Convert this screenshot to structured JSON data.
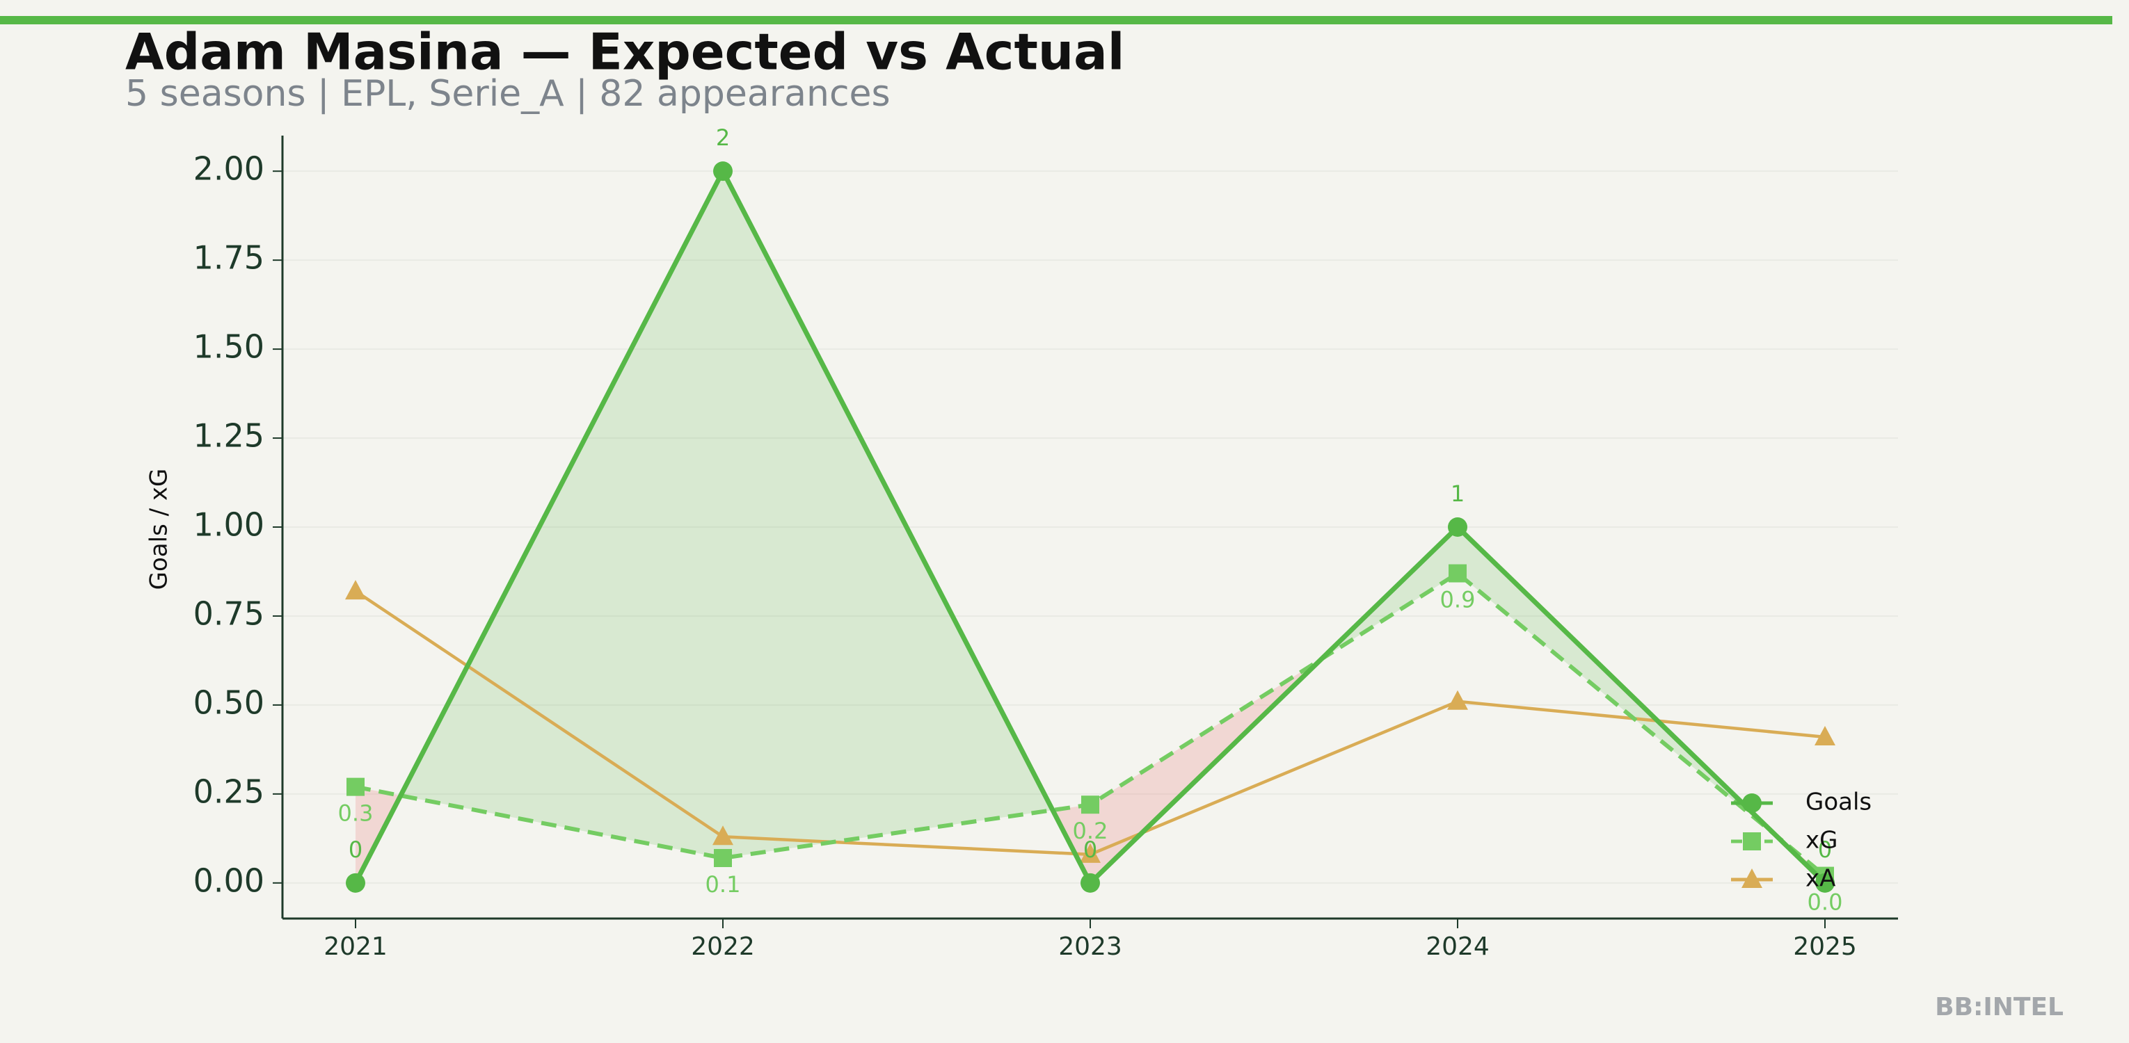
{
  "chart_data": {
    "type": "line",
    "title": "Adam Masina — Expected vs Actual",
    "subtitle": "5 seasons | EPL, Serie_A | 82 appearances",
    "y_label": "Goals / xG",
    "watermark": "BB:INTEL",
    "categories": [
      "2021",
      "2022",
      "2023",
      "2024",
      "2025"
    ],
    "series": [
      {
        "name": "Goals",
        "color": "#56b847",
        "line_style": "solid",
        "marker": "circle",
        "data_labels": true,
        "values": [
          0,
          2,
          0,
          1,
          0
        ]
      },
      {
        "name": "xG",
        "color": "#74cc62",
        "line_style": "dashed",
        "marker": "square",
        "data_labels": true,
        "values": [
          0.27,
          0.07,
          0.22,
          0.87,
          0.02
        ],
        "value_labels": [
          "0.3",
          "0.1",
          "0.2",
          "0.9",
          "0.0"
        ]
      },
      {
        "name": "xA",
        "color": "#d9ac55",
        "line_style": "solid",
        "marker": "triangle",
        "data_labels": false,
        "values": [
          0.82,
          0.13,
          0.08,
          0.51,
          0.41
        ]
      }
    ],
    "ylim": [
      -0.1,
      2.1
    ],
    "yticks": [
      {
        "value": 0,
        "label": "0.00"
      },
      {
        "value": 0.25,
        "label": "0.25"
      },
      {
        "value": 0.5,
        "label": "0.50"
      },
      {
        "value": 0.75,
        "label": "0.75"
      },
      {
        "value": 1,
        "label": "1.00"
      },
      {
        "value": 1.25,
        "label": "1.25"
      },
      {
        "value": 1.5,
        "label": "1.50"
      },
      {
        "value": 1.75,
        "label": "1.75"
      },
      {
        "value": 2,
        "label": "2.00"
      }
    ],
    "grid": true,
    "legend": "lower right"
  }
}
